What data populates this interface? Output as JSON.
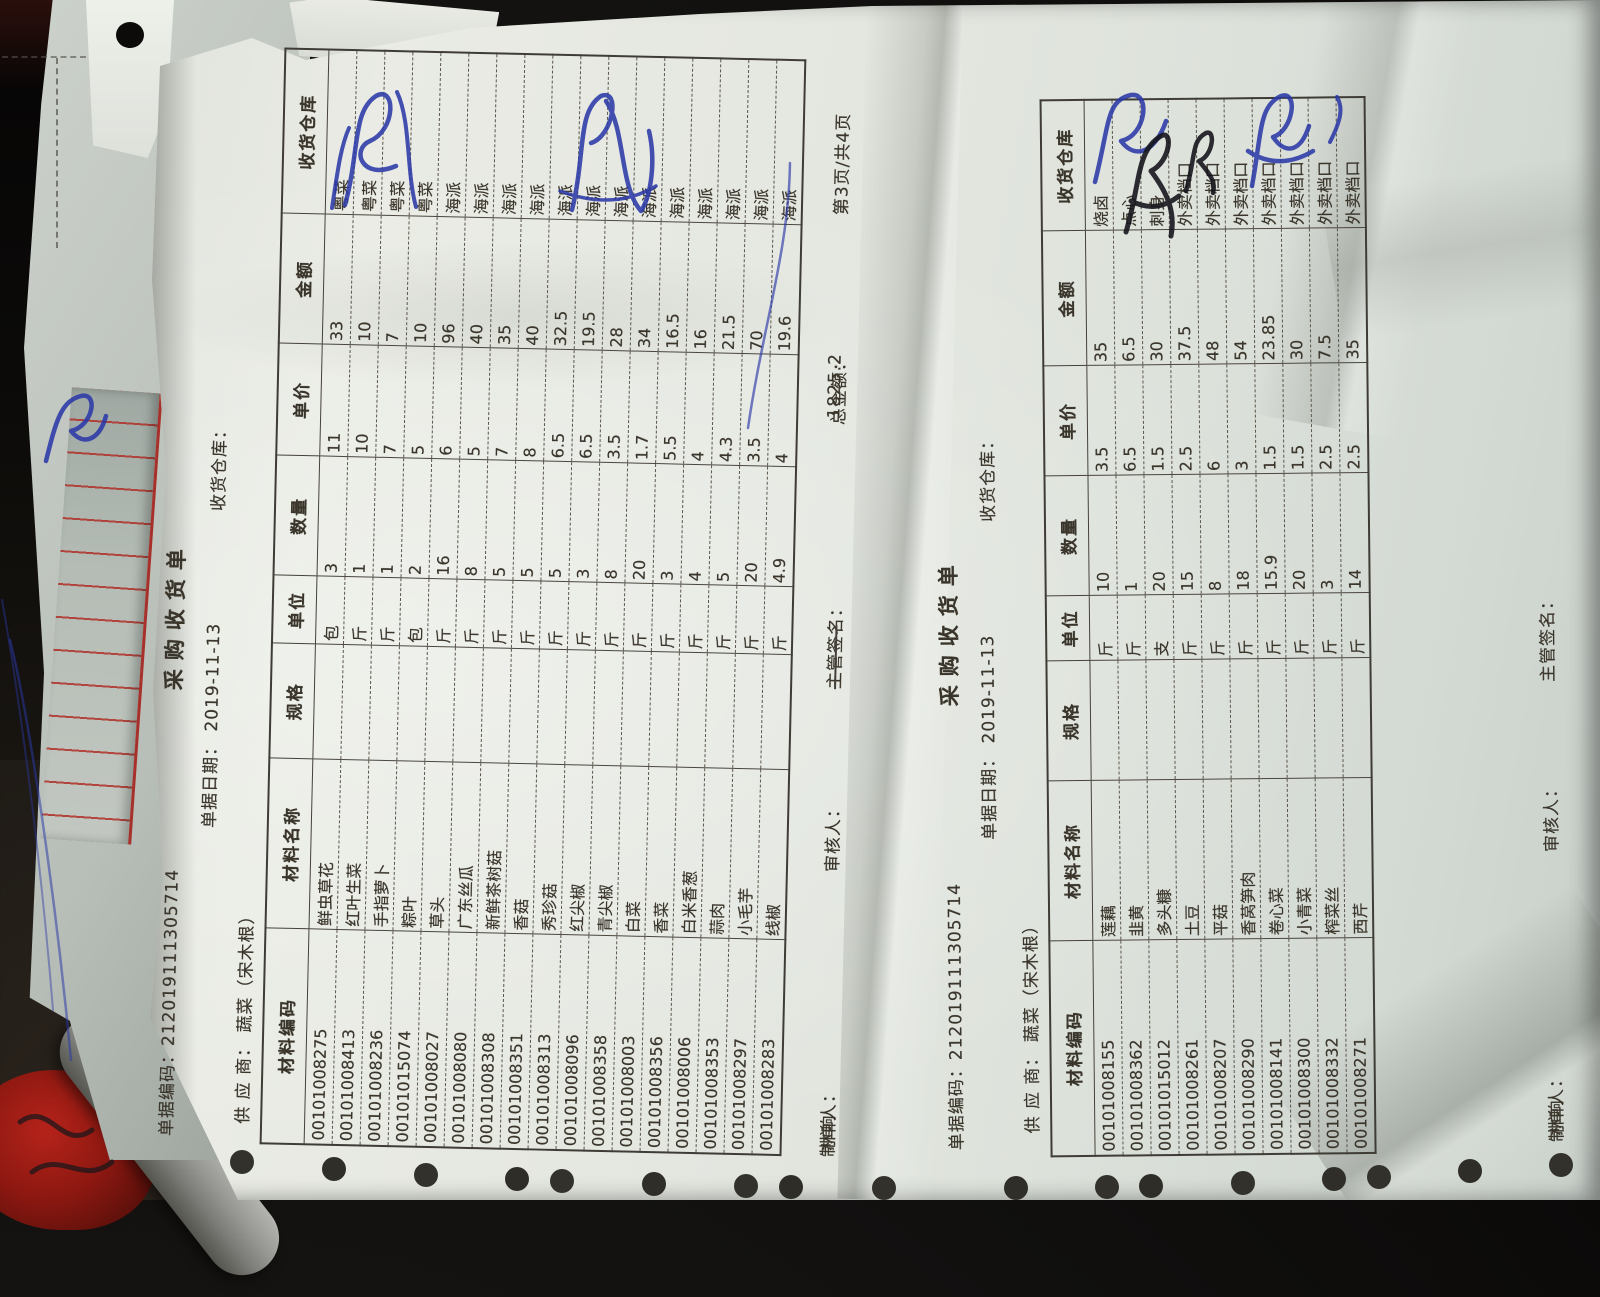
{
  "receipt_left": {
    "doc_code_label": "单据编码：",
    "doc_code": "212019111305714",
    "title": "采购收货单",
    "date_label": "单据日期：",
    "date": "2019-11-13",
    "warehouse_label": "收货仓库：",
    "supplier_label": "供 应 商：",
    "supplier": "蔬菜（宋木根）",
    "columns": [
      "材料编码",
      "材料名称",
      "规格",
      "单位",
      "数量",
      "单价",
      "金额",
      "收货仓库"
    ],
    "rows": [
      {
        "code": "00101008275",
        "name": "鲜虫草花",
        "spec": "",
        "unit": "包",
        "qty": "3",
        "price": "11",
        "amount": "33",
        "warehouse": "粤菜"
      },
      {
        "code": "00101008413",
        "name": "红叶生菜",
        "spec": "",
        "unit": "斤",
        "qty": "1",
        "price": "10",
        "amount": "10",
        "warehouse": "粤菜"
      },
      {
        "code": "00101008236",
        "name": "手指萝卜",
        "spec": "",
        "unit": "斤",
        "qty": "1",
        "price": "7",
        "amount": "7",
        "warehouse": "粤菜"
      },
      {
        "code": "00101015074",
        "name": "粽叶",
        "spec": "",
        "unit": "包",
        "qty": "2",
        "price": "5",
        "amount": "10",
        "warehouse": "粤菜"
      },
      {
        "code": "00101008027",
        "name": "草头",
        "spec": "",
        "unit": "斤",
        "qty": "16",
        "price": "6",
        "amount": "96",
        "warehouse": "海派"
      },
      {
        "code": "00101008080",
        "name": "广东丝瓜",
        "spec": "",
        "unit": "斤",
        "qty": "8",
        "price": "5",
        "amount": "40",
        "warehouse": "海派"
      },
      {
        "code": "00101008308",
        "name": "新鲜茶树菇",
        "spec": "",
        "unit": "斤",
        "qty": "5",
        "price": "7",
        "amount": "35",
        "warehouse": "海派"
      },
      {
        "code": "00101008351",
        "name": "香菇",
        "spec": "",
        "unit": "斤",
        "qty": "5",
        "price": "8",
        "amount": "40",
        "warehouse": "海派"
      },
      {
        "code": "00101008313",
        "name": "秀珍菇",
        "spec": "",
        "unit": "斤",
        "qty": "5",
        "price": "6.5",
        "amount": "32.5",
        "warehouse": "海派"
      },
      {
        "code": "00101008096",
        "name": "红尖椒",
        "spec": "",
        "unit": "斤",
        "qty": "3",
        "price": "6.5",
        "amount": "19.5",
        "warehouse": "海派"
      },
      {
        "code": "00101008358",
        "name": "青尖椒",
        "spec": "",
        "unit": "斤",
        "qty": "8",
        "price": "3.5",
        "amount": "28",
        "warehouse": "海派"
      },
      {
        "code": "00101008003",
        "name": "白菜",
        "spec": "",
        "unit": "斤",
        "qty": "20",
        "price": "1.7",
        "amount": "34",
        "warehouse": "海派"
      },
      {
        "code": "00101008356",
        "name": "香菜",
        "spec": "",
        "unit": "斤",
        "qty": "3",
        "price": "5.5",
        "amount": "16.5",
        "warehouse": "海派"
      },
      {
        "code": "00101008006",
        "name": "白米香葱",
        "spec": "",
        "unit": "斤",
        "qty": "4",
        "price": "4",
        "amount": "16",
        "warehouse": "海派"
      },
      {
        "code": "00101008353",
        "name": "蒜肉",
        "spec": "",
        "unit": "斤",
        "qty": "5",
        "price": "4.3",
        "amount": "21.5",
        "warehouse": "海派"
      },
      {
        "code": "00101008297",
        "name": "小毛芋",
        "spec": "",
        "unit": "斤",
        "qty": "20",
        "price": "3.5",
        "amount": "70",
        "warehouse": "海派"
      },
      {
        "code": "00101008283",
        "name": "线椒",
        "spec": "",
        "unit": "斤",
        "qty": "4.9",
        "price": "4",
        "amount": "19.6",
        "warehouse": "海派"
      }
    ],
    "footer": {
      "maker_label": "制单人：",
      "maker": "林响",
      "auditor_label": "审核人：",
      "supervisor_label": "主管签名：",
      "total_label": "总金额：",
      "total": "1825.2",
      "page": "第3页/共4页"
    }
  },
  "receipt_right": {
    "doc_code_label": "单据编码：",
    "doc_code": "212019111305714",
    "title": "采购收货单",
    "date_label": "单据日期：",
    "date": "2019-11-13",
    "warehouse_label": "收货仓库：",
    "supplier_label": "供 应 商：",
    "supplier": "蔬菜（宋木根）",
    "columns": [
      "材料编码",
      "材料名称",
      "规格",
      "单位",
      "数量",
      "单价",
      "金额",
      "收货仓库"
    ],
    "rows": [
      {
        "code": "00101008155",
        "name": "莲藕",
        "spec": "",
        "unit": "斤",
        "qty": "10",
        "price": "3.5",
        "amount": "35",
        "warehouse": "烧卤"
      },
      {
        "code": "00101008362",
        "name": "韭黄",
        "spec": "",
        "unit": "斤",
        "qty": "1",
        "price": "6.5",
        "amount": "6.5",
        "warehouse": "点心"
      },
      {
        "code": "00101015012",
        "name": "多头糠",
        "spec": "",
        "unit": "支",
        "qty": "20",
        "price": "1.5",
        "amount": "30",
        "warehouse": "刺身"
      },
      {
        "code": "00101008261",
        "name": "土豆",
        "spec": "",
        "unit": "斤",
        "qty": "15",
        "price": "2.5",
        "amount": "37.5",
        "warehouse": "外卖档口"
      },
      {
        "code": "00101008207",
        "name": "平菇",
        "spec": "",
        "unit": "斤",
        "qty": "8",
        "price": "6",
        "amount": "48",
        "warehouse": "外卖档口"
      },
      {
        "code": "00101008290",
        "name": "香莴笋肉",
        "spec": "",
        "unit": "斤",
        "qty": "18",
        "price": "3",
        "amount": "54",
        "warehouse": "外卖档口"
      },
      {
        "code": "00101008141",
        "name": "卷心菜",
        "spec": "",
        "unit": "斤",
        "qty": "15.9",
        "price": "1.5",
        "amount": "23.85",
        "warehouse": "外卖档口"
      },
      {
        "code": "00101008300",
        "name": "小青菜",
        "spec": "",
        "unit": "斤",
        "qty": "20",
        "price": "1.5",
        "amount": "30",
        "warehouse": "外卖档口"
      },
      {
        "code": "00101008332",
        "name": "榨菜丝",
        "spec": "",
        "unit": "斤",
        "qty": "3",
        "price": "2.5",
        "amount": "7.5",
        "warehouse": "外卖档口"
      },
      {
        "code": "00101008271",
        "name": "西芹",
        "spec": "",
        "unit": "斤",
        "qty": "14",
        "price": "2.5",
        "amount": "35",
        "warehouse": "外卖档口"
      }
    ],
    "footer": {
      "maker_label": "制单人：",
      "maker": "林响",
      "auditor_label": "审核人：",
      "supervisor_label": "主管签名："
    }
  },
  "handwriting": {
    "ink_blue": "#2c3aa8",
    "ink_black": "#16161c",
    "note": "illegible warehouse-approval signatures in blue and black ink"
  },
  "colors": {
    "paper": "#e6e9e2",
    "print": "#3a352b",
    "red_grid": "#b03028"
  }
}
